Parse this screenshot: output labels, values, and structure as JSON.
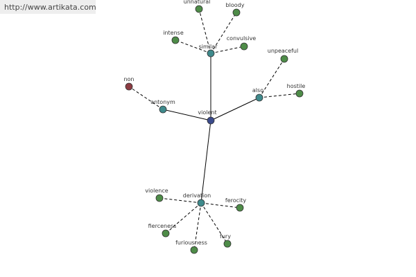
{
  "url": "http://www.artikata.com",
  "nodes": [
    {
      "label": "violent"
    },
    {
      "label": "similar"
    },
    {
      "label": "antonym"
    },
    {
      "label": "also"
    },
    {
      "label": "derivation"
    },
    {
      "label": "non"
    },
    {
      "label": "unnatural"
    },
    {
      "label": "bloody"
    },
    {
      "label": "intense"
    },
    {
      "label": "convulsive"
    },
    {
      "label": "unpeaceful"
    },
    {
      "label": "hostile"
    },
    {
      "label": "violence"
    },
    {
      "label": "ferocity"
    },
    {
      "label": "fierceness"
    },
    {
      "label": "furiousness"
    },
    {
      "label": "fury"
    }
  ]
}
